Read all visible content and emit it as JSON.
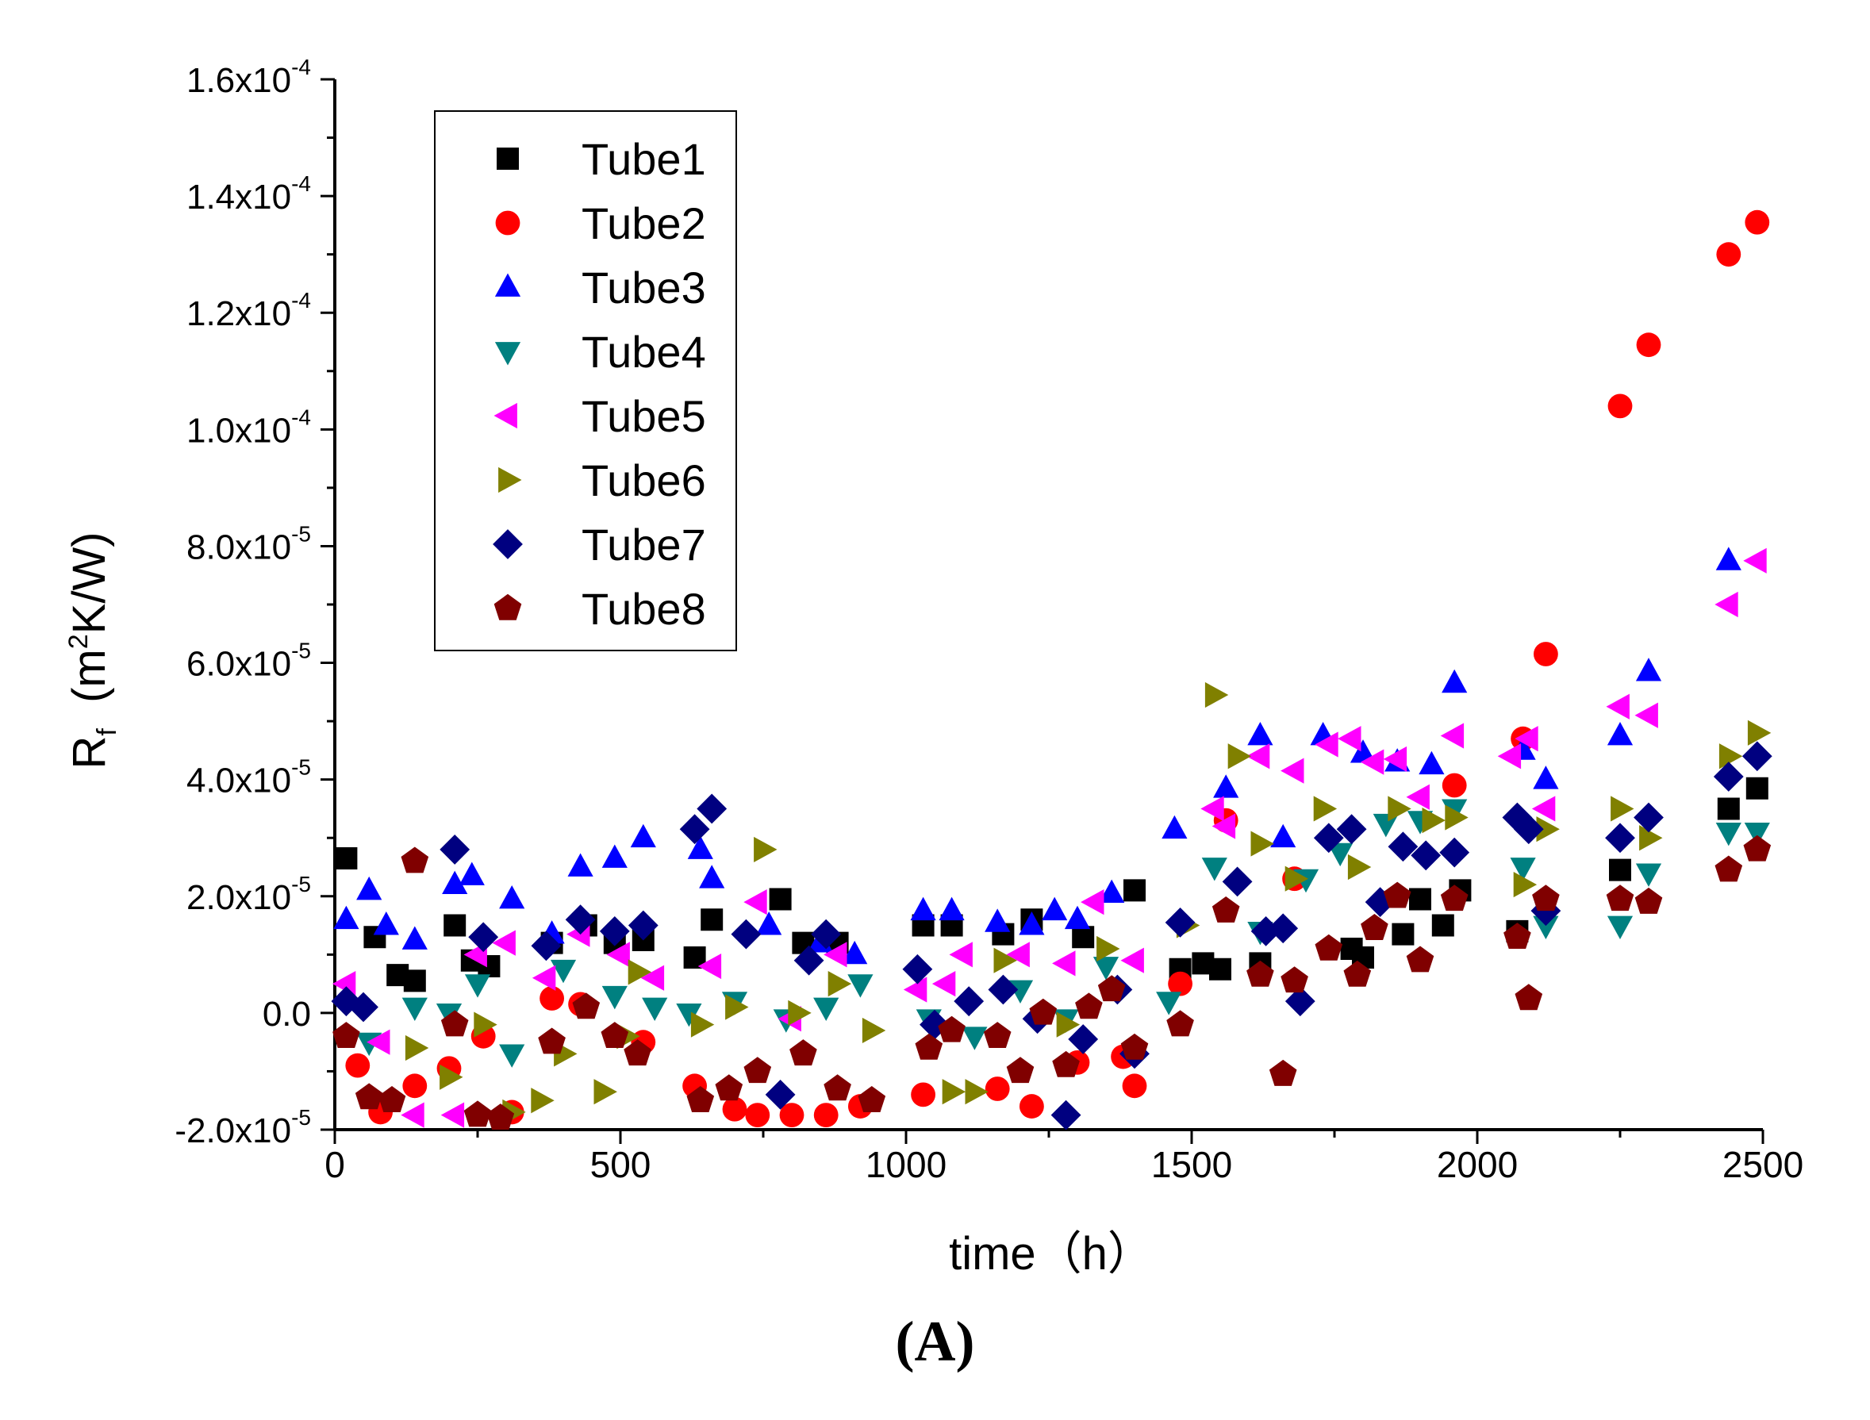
{
  "chart_data": {
    "type": "scatter",
    "title": "",
    "xlabel": "time（h）",
    "ylabel_main": "R",
    "ylabel_sub": "f",
    "ylabel_unit_open": "(m",
    "ylabel_unit_sup": "2",
    "ylabel_unit_close": "K/W)",
    "xlim": [
      0,
      2500
    ],
    "ylim": [
      -2e-05,
      0.00016
    ],
    "xticks": [
      0,
      500,
      1000,
      1500,
      2000,
      2500
    ],
    "xtick_labels": [
      "0",
      "500",
      "1000",
      "1500",
      "2000",
      "2500"
    ],
    "yticks": [
      {
        "value": -2e-05,
        "mant": "-2.0x10",
        "exp": "-5"
      },
      {
        "value": 0.0,
        "mant": "0.0",
        "exp": ""
      },
      {
        "value": 2e-05,
        "mant": "2.0x10",
        "exp": "-5"
      },
      {
        "value": 4e-05,
        "mant": "4.0x10",
        "exp": "-5"
      },
      {
        "value": 6e-05,
        "mant": "6.0x10",
        "exp": "-5"
      },
      {
        "value": 8e-05,
        "mant": "8.0x10",
        "exp": "-5"
      },
      {
        "value": 0.0001,
        "mant": "1.0x10",
        "exp": "-4"
      },
      {
        "value": 0.00012,
        "mant": "1.2x10",
        "exp": "-4"
      },
      {
        "value": 0.00014,
        "mant": "1.4x10",
        "exp": "-4"
      },
      {
        "value": 0.00016,
        "mant": "1.6x10",
        "exp": "-4"
      }
    ],
    "legend_position": "top-left",
    "series": [
      {
        "name": "Tube1",
        "marker": "square",
        "color": "#000000",
        "x": [
          20,
          70,
          110,
          140,
          210,
          240,
          270,
          380,
          440,
          490,
          540,
          630,
          660,
          780,
          820,
          880,
          1030,
          1080,
          1170,
          1220,
          1310,
          1400,
          1480,
          1520,
          1550,
          1620,
          1780,
          1800,
          1870,
          1900,
          1940,
          1970,
          2070,
          2250,
          2440,
          2490
        ],
        "y": [
          2.65e-05,
          1.3e-05,
          6.5e-06,
          5.5e-06,
          1.5e-05,
          9e-06,
          8e-06,
          1.2e-05,
          1.5e-05,
          1.2e-05,
          1.25e-05,
          9.5e-06,
          1.6e-05,
          1.95e-05,
          1.2e-05,
          1.2e-05,
          1.5e-05,
          1.5e-05,
          1.35e-05,
          1.6e-05,
          1.3e-05,
          2.1e-05,
          7.5e-06,
          8.5e-06,
          7.5e-06,
          8.5e-06,
          1.1e-05,
          9.5e-06,
          1.35e-05,
          1.95e-05,
          1.5e-05,
          2.1e-05,
          1.4e-05,
          2.45e-05,
          3.5e-05,
          3.85e-05
        ]
      },
      {
        "name": "Tube2",
        "marker": "circle",
        "color": "#ff0000",
        "x": [
          40,
          80,
          140,
          200,
          260,
          310,
          380,
          430,
          540,
          630,
          700,
          740,
          800,
          860,
          920,
          1030,
          1160,
          1220,
          1300,
          1380,
          1400,
          1480,
          1560,
          1680,
          1960,
          2080,
          2120,
          2250,
          2300,
          2440,
          2490
        ],
        "y": [
          -9e-06,
          -1.7e-05,
          -1.25e-05,
          -9.5e-06,
          -4e-06,
          -1.7e-05,
          2.5e-06,
          1.5e-06,
          -5e-06,
          -1.25e-05,
          -1.65e-05,
          -1.75e-05,
          -1.75e-05,
          -1.75e-05,
          -1.6e-05,
          -1.4e-05,
          -1.3e-05,
          -1.6e-05,
          -8.5e-06,
          -7.5e-06,
          -1.25e-05,
          5e-06,
          3.3e-05,
          2.3e-05,
          3.9e-05,
          4.7e-05,
          6.15e-05,
          0.000104,
          0.0001145,
          0.00013,
          0.0001355
        ]
      },
      {
        "name": "Tube3",
        "marker": "triangle-up",
        "color": "#0000ff",
        "x": [
          20,
          60,
          90,
          140,
          210,
          240,
          310,
          380,
          430,
          490,
          540,
          640,
          660,
          760,
          850,
          910,
          1030,
          1080,
          1160,
          1220,
          1260,
          1300,
          1360,
          1470,
          1560,
          1620,
          1660,
          1730,
          1800,
          1860,
          1920,
          1960,
          2080,
          2120,
          2250,
          2300,
          2440
        ],
        "y": [
          1.6e-05,
          2.1e-05,
          1.5e-05,
          1.25e-05,
          2.2e-05,
          2.35e-05,
          1.95e-05,
          1.35e-05,
          2.5e-05,
          2.65e-05,
          3e-05,
          2.8e-05,
          2.3e-05,
          1.5e-05,
          1.2e-05,
          1e-05,
          1.75e-05,
          1.75e-05,
          1.55e-05,
          1.5e-05,
          1.75e-05,
          1.6e-05,
          2.05e-05,
          3.15e-05,
          3.85e-05,
          4.75e-05,
          3e-05,
          4.75e-05,
          4.45e-05,
          4.3e-05,
          4.25e-05,
          5.65e-05,
          4.5e-05,
          4e-05,
          4.75e-05,
          5.85e-05,
          7.75e-05
        ]
      },
      {
        "name": "Tube4",
        "marker": "triangle-down",
        "color": "#008080",
        "x": [
          60,
          140,
          200,
          250,
          310,
          400,
          490,
          560,
          620,
          700,
          790,
          860,
          920,
          1040,
          1120,
          1200,
          1280,
          1350,
          1460,
          1540,
          1620,
          1700,
          1760,
          1840,
          1900,
          1960,
          2080,
          2120,
          2250,
          2300,
          2440,
          2490
        ],
        "y": [
          -5e-06,
          1e-06,
          0.0,
          5e-06,
          -7e-06,
          7.5e-06,
          3e-06,
          1e-06,
          0.0,
          2e-06,
          -1e-06,
          1e-06,
          5e-06,
          -1e-06,
          -4e-06,
          4e-06,
          -1e-06,
          8e-06,
          2e-06,
          2.5e-05,
          1.4e-05,
          2.3e-05,
          2.75e-05,
          3.25e-05,
          3.3e-05,
          3.5e-05,
          2.5e-05,
          1.5e-05,
          1.5e-05,
          2.4e-05,
          3.1e-05,
          3.1e-05
        ]
      },
      {
        "name": "Tube5",
        "marker": "triangle-left",
        "color": "#ff00ff",
        "x": [
          20,
          80,
          140,
          210,
          250,
          300,
          370,
          430,
          500,
          560,
          660,
          740,
          800,
          880,
          1020,
          1070,
          1100,
          1200,
          1280,
          1330,
          1400,
          1540,
          1560,
          1620,
          1680,
          1740,
          1780,
          1820,
          1860,
          1900,
          1960,
          2060,
          2090,
          2120,
          2250,
          2300,
          2440,
          2490
        ],
        "y": [
          5e-06,
          -5e-06,
          -1.75e-05,
          -1.75e-05,
          1e-05,
          1.2e-05,
          6e-06,
          1.35e-05,
          1e-05,
          6e-06,
          8e-06,
          1.9e-05,
          -1e-06,
          1e-05,
          4e-06,
          5e-06,
          1e-05,
          1e-05,
          8.5e-06,
          1.9e-05,
          9e-06,
          3.5e-05,
          3.2e-05,
          4.4e-05,
          4.15e-05,
          4.6e-05,
          4.7e-05,
          4.3e-05,
          4.35e-05,
          3.7e-05,
          4.75e-05,
          4.4e-05,
          4.7e-05,
          3.5e-05,
          5.25e-05,
          5.1e-05,
          7e-05,
          7.75e-05
        ]
      },
      {
        "name": "Tube6",
        "marker": "triangle-right",
        "color": "#808000",
        "x": [
          140,
          200,
          260,
          310,
          360,
          400,
          470,
          510,
          530,
          640,
          700,
          750,
          810,
          880,
          940,
          1080,
          1120,
          1170,
          1280,
          1350,
          1490,
          1540,
          1580,
          1620,
          1680,
          1730,
          1790,
          1860,
          1920,
          1960,
          2080,
          2120,
          2250,
          2300,
          2440,
          2490
        ],
        "y": [
          -6e-06,
          -1.1e-05,
          -2e-06,
          -1.7e-05,
          -1.5e-05,
          -7e-06,
          -1.35e-05,
          -4e-06,
          7e-06,
          -2e-06,
          1e-06,
          2.8e-05,
          0.0,
          5e-06,
          -3e-06,
          -1.35e-05,
          -1.35e-05,
          9e-06,
          -2e-06,
          1.1e-05,
          1.5e-05,
          5.45e-05,
          4.4e-05,
          2.9e-05,
          2.3e-05,
          3.5e-05,
          2.5e-05,
          3.5e-05,
          3.3e-05,
          3.35e-05,
          2.2e-05,
          3.15e-05,
          3.5e-05,
          3e-05,
          4.4e-05,
          4.8e-05
        ]
      },
      {
        "name": "Tube7",
        "marker": "diamond",
        "color": "#000080",
        "x": [
          20,
          50,
          210,
          260,
          370,
          430,
          490,
          540,
          630,
          660,
          720,
          780,
          830,
          860,
          1020,
          1050,
          1110,
          1170,
          1230,
          1280,
          1310,
          1370,
          1400,
          1480,
          1580,
          1630,
          1660,
          1690,
          1740,
          1780,
          1830,
          1870,
          1910,
          1960,
          2070,
          2090,
          2120,
          2250,
          2300,
          2440,
          2490
        ],
        "y": [
          2e-06,
          1e-06,
          2.8e-05,
          1.3e-05,
          1.15e-05,
          1.6e-05,
          1.4e-05,
          1.5e-05,
          3.15e-05,
          3.5e-05,
          1.35e-05,
          -1.4e-05,
          9e-06,
          1.35e-05,
          7.5e-06,
          -2e-06,
          2e-06,
          4e-06,
          -1e-06,
          -1.75e-05,
          -4.5e-06,
          4e-06,
          -7e-06,
          1.55e-05,
          2.25e-05,
          1.4e-05,
          1.45e-05,
          2e-06,
          3e-05,
          3.15e-05,
          1.9e-05,
          2.85e-05,
          2.7e-05,
          2.75e-05,
          3.35e-05,
          3.15e-05,
          1.75e-05,
          3e-05,
          3.35e-05,
          4.05e-05,
          4.4e-05
        ]
      },
      {
        "name": "Tube8",
        "marker": "pentagon",
        "color": "#800000",
        "x": [
          20,
          60,
          100,
          140,
          210,
          250,
          290,
          380,
          440,
          490,
          530,
          640,
          690,
          740,
          820,
          880,
          940,
          1040,
          1080,
          1160,
          1200,
          1240,
          1280,
          1320,
          1360,
          1400,
          1480,
          1560,
          1620,
          1660,
          1680,
          1740,
          1790,
          1820,
          1860,
          1900,
          1960,
          2070,
          2090,
          2120,
          2250,
          2300,
          2440,
          2490
        ],
        "y": [
          -4e-06,
          -1.45e-05,
          -1.5e-05,
          2.6e-05,
          -2e-06,
          -1.75e-05,
          -1.8e-05,
          -5e-06,
          1e-06,
          -4e-06,
          -7e-06,
          -1.5e-05,
          -1.3e-05,
          -1e-05,
          -7e-06,
          -1.3e-05,
          -1.5e-05,
          -6e-06,
          -3e-06,
          -4e-06,
          -1e-05,
          0.0,
          -9e-06,
          1e-06,
          4e-06,
          -6e-06,
          -2e-06,
          1.75e-05,
          6.5e-06,
          -1.05e-05,
          5.5e-06,
          1.1e-05,
          6.5e-06,
          1.45e-05,
          2e-05,
          9e-06,
          1.95e-05,
          1.3e-05,
          2.5e-06,
          1.95e-05,
          1.95e-05,
          1.9e-05,
          2.45e-05,
          2.8e-05
        ]
      }
    ]
  },
  "figure": {
    "panel_label": "(A)"
  }
}
